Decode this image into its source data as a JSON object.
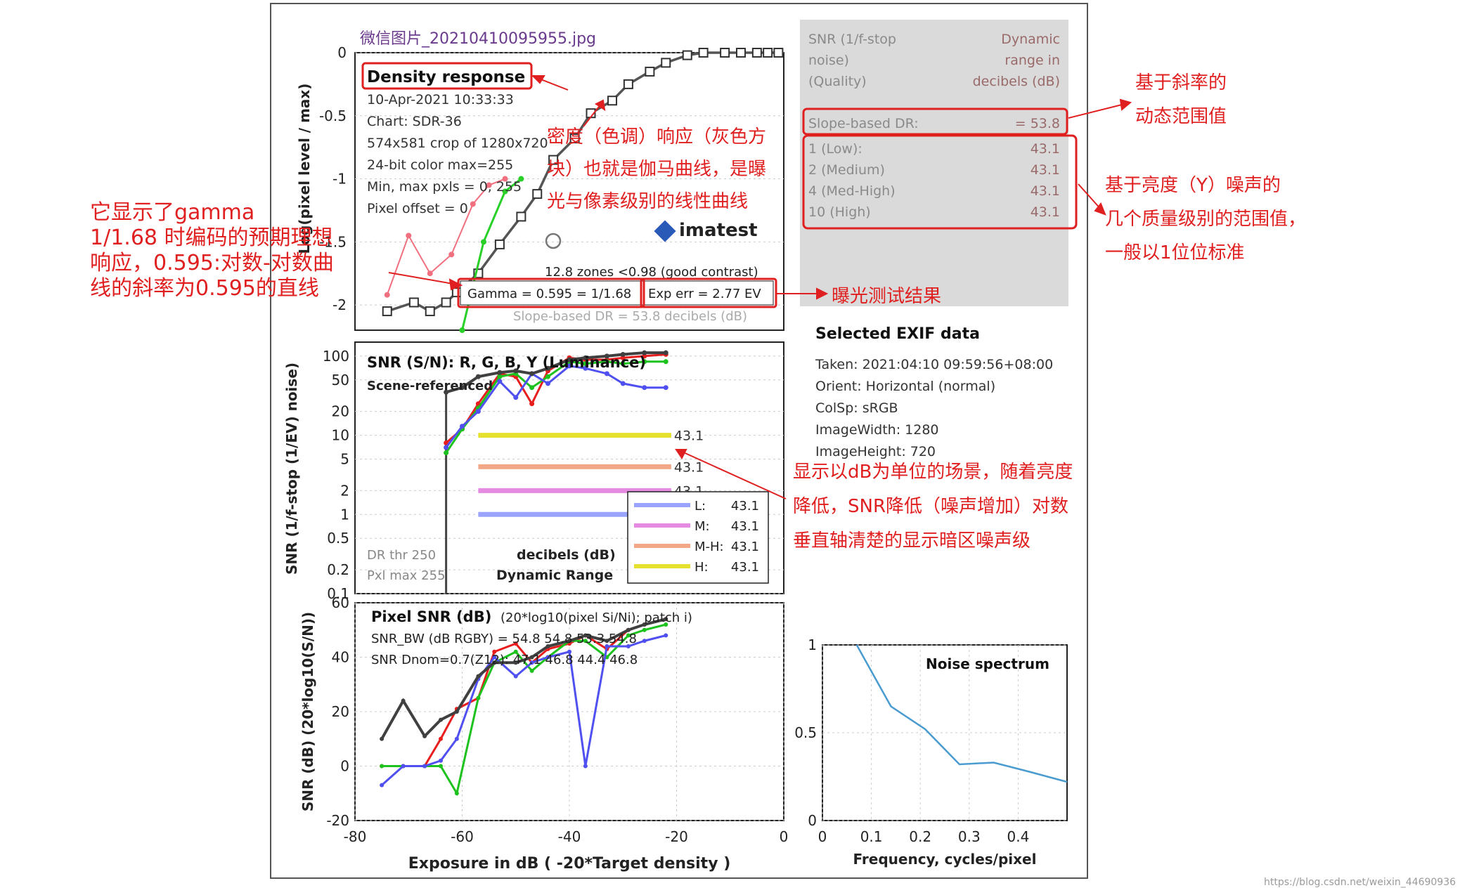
{
  "figure_title": "微信图片_20210410095955.jpg",
  "density_panel": {
    "title": "Density response",
    "info_lines": [
      "10-Apr-2021 10:33:33",
      "Chart: SDR-36",
      "574x581 crop of 1280x720",
      "24-bit color  max=255",
      "Min, max pxls = 0, 255",
      "Pixel offset = 0"
    ],
    "logo_text": "imatest",
    "zones_text": "12.8 zones <0.98 (good contrast)",
    "gamma_text": "Gamma = 0.595 = 1/1.68",
    "exp_err_text": "Exp err = 2.77 EV",
    "slope_dr_text": "Slope-based DR = 53.8 decibels (dB)",
    "ylabel": "Log(pixel level / max)"
  },
  "snr_panel": {
    "title": "SNR (S/N): R, G, B, Y (Luminance)",
    "subtitle": "Scene-referenced",
    "ylabel": "SNR (1/f-stop (1/EV) noise)",
    "dr_thr": "DR thr 250",
    "pxl_max": "Pxl max 255",
    "decibels_label": "decibels (dB)",
    "dynamic_range_label": "Dynamic Range",
    "bar_label": "43.1",
    "legend": [
      {
        "name": "L:",
        "value": "43.1",
        "color": "#9aa4ff"
      },
      {
        "name": "M:",
        "value": "43.1",
        "color": "#e48ae0"
      },
      {
        "name": "M-H:",
        "value": "43.1",
        "color": "#f2a887"
      },
      {
        "name": "H:",
        "value": "43.1",
        "color": "#e6e02e"
      }
    ]
  },
  "pixel_panel": {
    "title": "Pixel SNR (dB)",
    "title_note": "(20*log10(pixel Si/Ni); patch i)",
    "line1": "SNR_BW (dB RGBY) = 54.8 54.8 53.3 54.8",
    "line2": "SNR Dnom=0.7(Z12): 47.1 46.8 44.4 46.8",
    "ylabel": "SNR (dB) (20*log10(S/N))",
    "xlabel": "Exposure in dB ( -20*Target density )"
  },
  "noise_panel": {
    "title": "Noise spectrum",
    "xlabel": "Frequency, cycles/pixel"
  },
  "dr_table": {
    "header_left": [
      "SNR (1/f-stop",
      "noise)",
      "(Quality)"
    ],
    "header_right": [
      "Dynamic",
      "range in",
      "decibels (dB)"
    ],
    "slope_label": "Slope-based DR:",
    "slope_value": "= 53.8",
    "rows": [
      {
        "label": "1  (Low):",
        "value": "43.1"
      },
      {
        "label": "2  (Medium)",
        "value": "43.1"
      },
      {
        "label": "4  (Med-High)",
        "value": "43.1"
      },
      {
        "label": "10 (High)",
        "value": "43.1"
      }
    ]
  },
  "exif": {
    "title": "Selected EXIF data",
    "lines": [
      "Taken: 2021:04:10 09:59:56+08:00",
      "Orient: Horizontal (normal)",
      "ColSp:  sRGB",
      "ImageWidth:  1280",
      "ImageHeight:  720"
    ]
  },
  "annotations": {
    "density_note": [
      "密度（色调）响应（灰色方",
      "块）也就是伽马曲线，是曝",
      "光与像素级别的线性曲线"
    ],
    "gamma_note": [
      "它显示了gamma",
      "1/1.68 时编码的预期理想",
      "响应，0.595:对数-对数曲",
      "线的斜率为0.595的直线"
    ],
    "exposure_note": "曝光测试结果",
    "slope_note": [
      "基于斜率的",
      "动态范围值"
    ],
    "quality_note": [
      "基于亮度（Y）噪声的",
      "几个质量级别的范围值，",
      "一般以1位位标准"
    ],
    "snr_note": [
      "显示以dB为单位的场景，随着亮度",
      "降低，SNR降低（噪声增加）对数",
      "垂直轴清楚的显示暗区噪声级"
    ]
  },
  "watermark": "https://blog.csdn.net/weixin_44690936",
  "colors": {
    "annotation_red": "#e02020",
    "red": "#e81e1e",
    "green": "#1ec21e",
    "blue": "#5050f0",
    "black": "#404040",
    "noise": "#4a9bd0",
    "table_bg": "#dadada"
  },
  "chart_data": [
    {
      "type": "line",
      "title": "Density response",
      "xlabel": "",
      "ylabel": "Log(pixel level / max)",
      "xlim": [
        -80,
        0
      ],
      "ylim": [
        -2.2,
        0
      ],
      "xticks": [],
      "yticks": [
        0,
        -0.5,
        -1,
        -1.5,
        -2
      ],
      "ytick_labels": [
        "0",
        "-0.5",
        "-1",
        "-1.5",
        "-2"
      ],
      "series": [
        {
          "name": "gray patches",
          "x": [
            -74,
            -69,
            -66,
            -63,
            -61,
            -57,
            -53,
            -49,
            -46,
            -43,
            -39,
            -36,
            -32,
            -29,
            -25,
            -22,
            -18,
            -15,
            -11,
            -8,
            -5,
            -3,
            -1
          ],
          "y": [
            -2.05,
            -1.98,
            -2.05,
            -1.98,
            -1.9,
            -1.75,
            -1.52,
            -1.3,
            -1.12,
            -0.85,
            -0.68,
            -0.48,
            -0.38,
            -0.25,
            -0.15,
            -0.08,
            -0.02,
            0,
            0,
            0,
            0,
            0,
            0
          ]
        },
        {
          "name": "red",
          "x": [
            -74,
            -70,
            -66,
            -62,
            -58,
            -55,
            -52
          ],
          "y": [
            -1.92,
            -1.45,
            -1.75,
            -1.6,
            -1.2,
            -1.05,
            -1.0
          ]
        },
        {
          "name": "green",
          "x": [
            -60,
            -56,
            -52,
            -49
          ],
          "y": [
            -2.2,
            -1.5,
            -1.1,
            -1.0
          ]
        }
      ]
    },
    {
      "type": "line",
      "title": "SNR (S/N): R, G, B, Y (Luminance)",
      "xlabel": "",
      "ylabel": "SNR (1/f-stop (1/EV) noise)",
      "scale": "log",
      "xlim": [
        -80,
        0
      ],
      "ylim": [
        0.1,
        150
      ],
      "yticks": [
        100,
        50,
        20,
        10,
        5,
        2,
        1,
        0.5,
        0.2,
        0.1
      ],
      "ytick_labels": [
        "100",
        "50",
        "20",
        "10",
        "5",
        "2",
        "1",
        "0.5",
        "0.2",
        "0.1"
      ],
      "x": [
        -63,
        -60,
        -57,
        -53,
        -50,
        -47,
        -44,
        -40,
        -37,
        -33,
        -30,
        -26,
        -22
      ],
      "series": [
        {
          "name": "R",
          "color": "red",
          "values": [
            8,
            12,
            25,
            60,
            55,
            25,
            65,
            95,
            90,
            90,
            95,
            100,
            105
          ]
        },
        {
          "name": "G",
          "color": "green",
          "values": [
            6,
            12,
            22,
            55,
            60,
            40,
            55,
            85,
            80,
            85,
            80,
            85,
            85
          ]
        },
        {
          "name": "B",
          "color": "blue",
          "values": [
            7,
            13,
            20,
            48,
            30,
            60,
            45,
            75,
            70,
            60,
            45,
            40,
            40
          ]
        },
        {
          "name": "Y",
          "color": "black",
          "values": [
            35,
            40,
            55,
            62,
            65,
            60,
            70,
            90,
            95,
            100,
            105,
            110,
            110
          ]
        }
      ],
      "dr_bars": [
        {
          "name": "H",
          "level": 10,
          "x_start": -57,
          "x_end": -21
        },
        {
          "name": "M-H",
          "level": 4,
          "x_start": -57,
          "x_end": -21
        },
        {
          "name": "M",
          "level": 2,
          "x_start": -57,
          "x_end": -21
        },
        {
          "name": "L",
          "level": 1,
          "x_start": -57,
          "x_end": -21
        }
      ]
    },
    {
      "type": "line",
      "title": "Pixel SNR (dB)",
      "xlabel": "Exposure in dB ( -20*Target density )",
      "ylabel": "SNR (dB) (20*log10(S/N))",
      "xlim": [
        -80,
        0
      ],
      "ylim": [
        -20,
        60
      ],
      "xticks": [
        -80,
        -60,
        -40,
        -20,
        0
      ],
      "xtick_labels": [
        "-80",
        "-60",
        "-40",
        "-20",
        "0"
      ],
      "yticks": [
        -20,
        0,
        20,
        40,
        60
      ],
      "ytick_labels": [
        "-20",
        "0",
        "20",
        "40",
        "60"
      ],
      "x": [
        -75,
        -71,
        -67,
        -64,
        -61,
        -57,
        -54,
        -50,
        -47,
        -44,
        -40,
        -37,
        -33,
        -29,
        -26,
        -22
      ],
      "series": [
        {
          "name": "R",
          "color": "red",
          "values": [
            0,
            0,
            0,
            10,
            21,
            25,
            42,
            45,
            38,
            43,
            45,
            48,
            43,
            50,
            52,
            54
          ]
        },
        {
          "name": "G",
          "color": "green",
          "values": [
            0,
            0,
            0,
            0,
            -10,
            25,
            38,
            42,
            35,
            40,
            46,
            46,
            40,
            48,
            50,
            52
          ]
        },
        {
          "name": "B",
          "color": "blue",
          "values": [
            -7,
            0,
            0,
            2,
            10,
            32,
            40,
            33,
            38,
            40,
            42,
            0,
            44,
            44,
            46,
            48
          ]
        },
        {
          "name": "Y",
          "color": "black",
          "values": [
            10,
            24,
            11,
            17,
            20,
            33,
            38,
            38,
            40,
            44,
            46,
            48,
            46,
            50,
            52,
            54
          ]
        }
      ]
    },
    {
      "type": "line",
      "title": "Noise spectrum",
      "xlabel": "Frequency, cycles/pixel",
      "ylabel": "",
      "xlim": [
        0,
        0.5
      ],
      "ylim": [
        0,
        1
      ],
      "xticks": [
        0,
        0.1,
        0.2,
        0.3,
        0.4
      ],
      "xtick_labels": [
        "0",
        "0.1",
        "0.2",
        "0.3",
        "0.4"
      ],
      "yticks": [
        0,
        0.5,
        1
      ],
      "ytick_labels": [
        "0",
        "0.5",
        "1"
      ],
      "x": [
        0.07,
        0.14,
        0.21,
        0.28,
        0.35,
        0.42,
        0.5
      ],
      "values": [
        1.0,
        0.65,
        0.52,
        0.32,
        0.33,
        0.28,
        0.22
      ]
    }
  ]
}
